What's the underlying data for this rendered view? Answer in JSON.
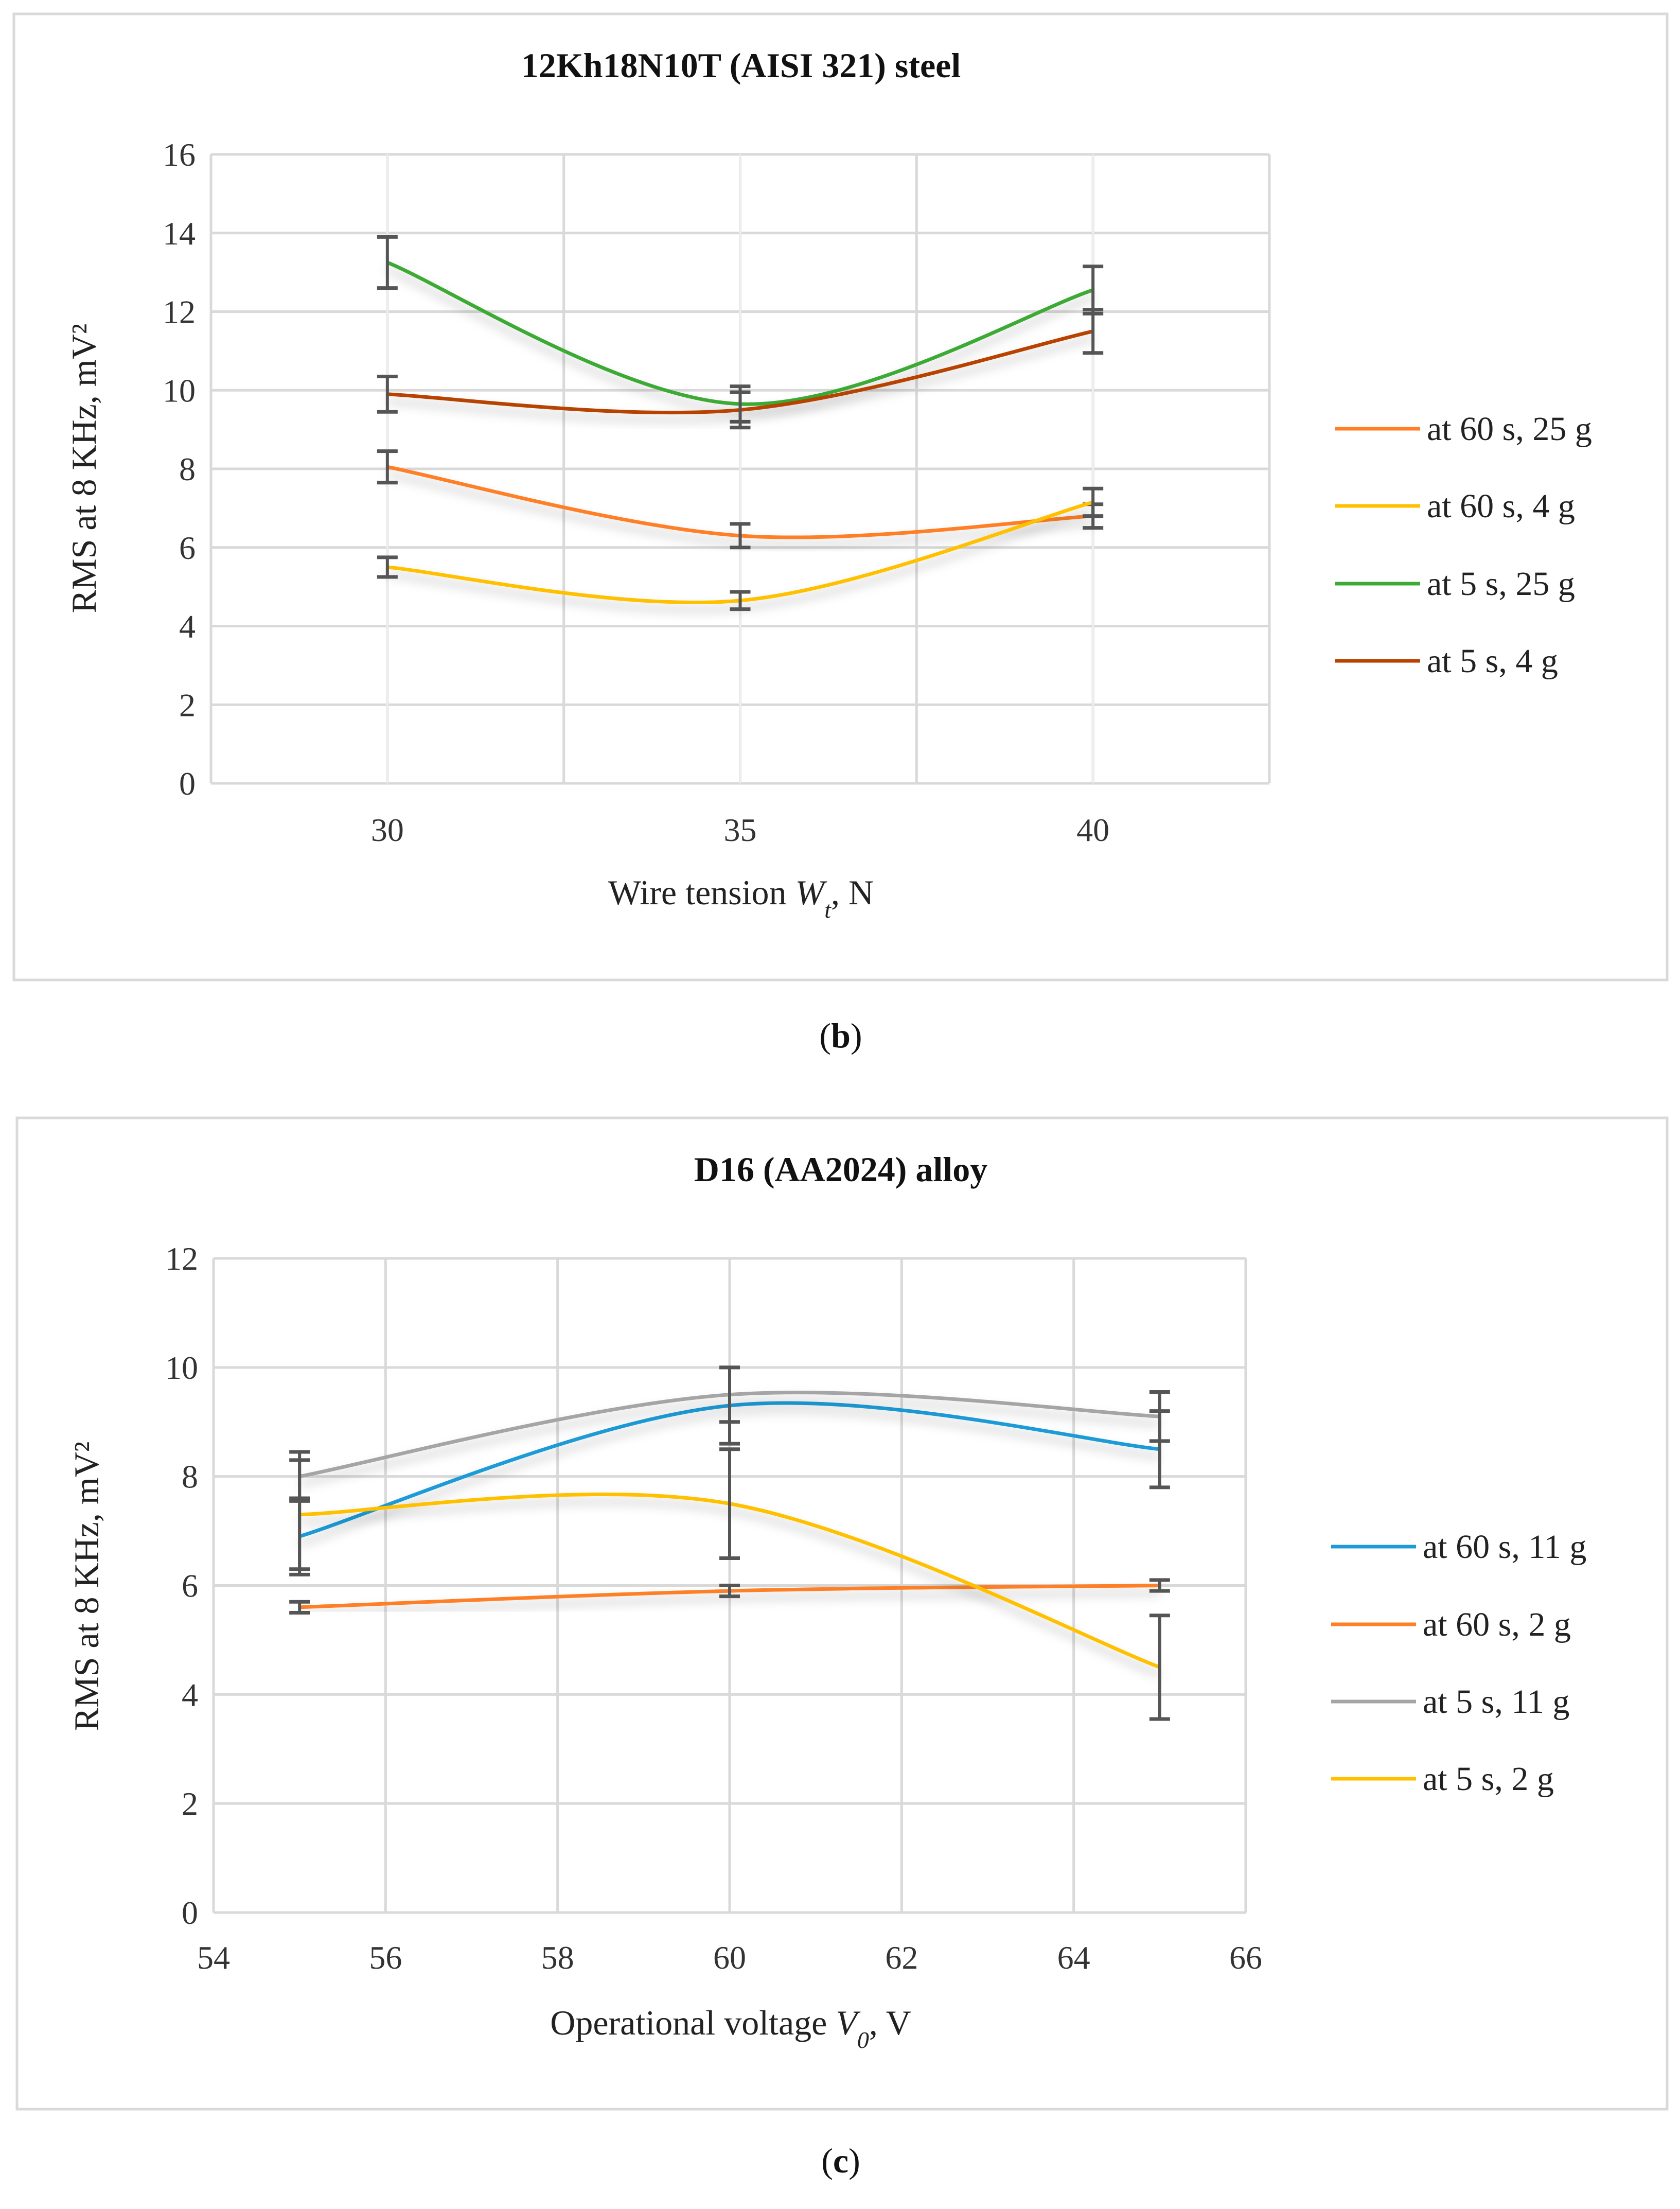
{
  "chart_data": [
    {
      "type": "line",
      "title": "12Kh18N10T (AISI 321) steel",
      "caption": {
        "open": "(",
        "letter": "b",
        "close": ")"
      },
      "xlabel": {
        "pre": "Wire tension ",
        "italic": "W",
        "sub": "t",
        "post": ", N"
      },
      "ylabel": "RMS at 8 KHz, mV²",
      "x": [
        30,
        35,
        40
      ],
      "xticks": [
        "30",
        "35",
        "40"
      ],
      "xlim": [
        27.5,
        42.5
      ],
      "ylim": [
        0,
        16
      ],
      "yticks": [
        "0",
        "2",
        "4",
        "6",
        "8",
        "10",
        "12",
        "14",
        "16"
      ],
      "grid": true,
      "smooth": true,
      "legend_position": "right",
      "series": [
        {
          "name": "at 60 s, 25 g",
          "color": "#FF7F27",
          "values": [
            8.05,
            6.3,
            6.8
          ],
          "errors": [
            0.4,
            0.3,
            0.3
          ]
        },
        {
          "name": "at 60 s, 4 g",
          "color": "#FFC000",
          "values": [
            5.5,
            4.65,
            7.15
          ],
          "errors": [
            0.25,
            0.22,
            0.35
          ]
        },
        {
          "name": "at 5 s, 25 g",
          "color": "#3DAA35",
          "values": [
            13.25,
            9.65,
            12.55
          ],
          "errors": [
            0.65,
            0.45,
            0.6
          ]
        },
        {
          "name": "at 5 s, 4 g",
          "color": "#B84200",
          "values": [
            9.9,
            9.5,
            11.5
          ],
          "errors": [
            0.45,
            0.45,
            0.55
          ]
        }
      ]
    },
    {
      "type": "line",
      "title": "D16 (AA2024) alloy",
      "caption": {
        "open": "(",
        "letter": "c",
        "close": ")"
      },
      "xlabel": {
        "pre": "Operational voltage ",
        "italic": "V",
        "sub": "0",
        "post": ", V"
      },
      "ylabel": "RMS at 8 KHz, mV²",
      "x": [
        55,
        60,
        65
      ],
      "xticks": [
        "54",
        "56",
        "58",
        "60",
        "62",
        "64",
        "66"
      ],
      "xlim": [
        54,
        66
      ],
      "ylim": [
        0,
        12
      ],
      "yticks": [
        "0",
        "2",
        "4",
        "6",
        "8",
        "10",
        "12"
      ],
      "grid": true,
      "smooth": true,
      "legend_position": "right",
      "series": [
        {
          "name": "at 60 s, 11 g",
          "color": "#1E9BD7",
          "values": [
            6.9,
            9.3,
            8.5
          ],
          "errors": [
            0.7,
            0.7,
            0.7
          ]
        },
        {
          "name": "at 60 s, 2 g",
          "color": "#FF7F27",
          "values": [
            5.6,
            5.9,
            6.0
          ],
          "errors": [
            0.1,
            0.1,
            0.1
          ]
        },
        {
          "name": "at 5 s, 11 g",
          "color": "#A5A5A5",
          "values": [
            8.0,
            9.5,
            9.1
          ],
          "errors": [
            0.45,
            0.5,
            0.45
          ]
        },
        {
          "name": "at 5 s, 2 g",
          "color": "#FFC000",
          "values": [
            7.3,
            7.5,
            4.5
          ],
          "errors": [
            1.0,
            1.0,
            0.95
          ]
        }
      ]
    }
  ]
}
